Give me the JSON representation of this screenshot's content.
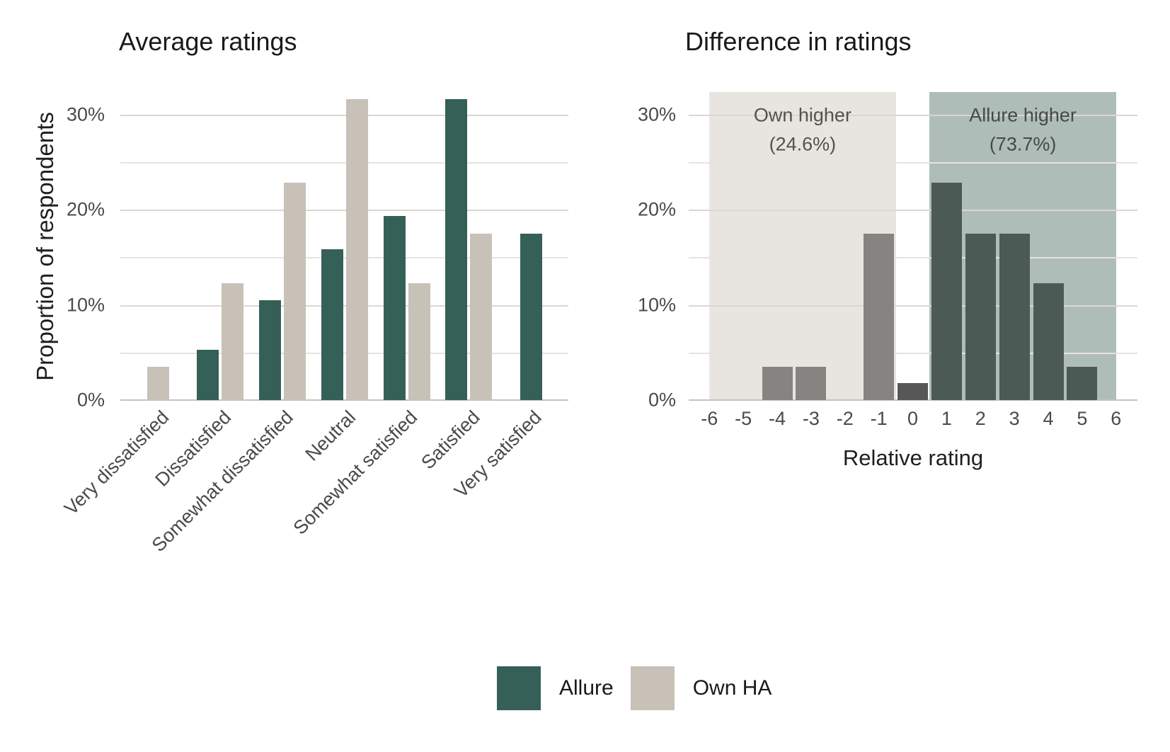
{
  "figure": {
    "background": "#ffffff"
  },
  "colors": {
    "grid_major": "#dbd6d1",
    "grid_minor": "#e7e3df",
    "axis_line": "#c7c2bc",
    "tick_text": "#4c4a47",
    "title_text": "#1a1a1a"
  },
  "legend": {
    "items": [
      {
        "label": "Allure",
        "color": "#356058"
      },
      {
        "label": "Own HA",
        "color": "#c8c1b8"
      }
    ]
  },
  "chart_data": [
    {
      "type": "bar",
      "title": "Average ratings",
      "xlabel": "",
      "ylabel": "Proportion of respondents",
      "categories": [
        "Very dissatisfied",
        "Dissatisfied",
        "Somewhat dissatisfied",
        "Neutral",
        "Somewhat satisfied",
        "Satisfied",
        "Very satisfied"
      ],
      "series": [
        {
          "name": "Allure",
          "color": "#356058",
          "values": [
            null,
            5.3,
            10.5,
            15.8,
            19.3,
            31.6,
            17.5
          ]
        },
        {
          "name": "Own HA",
          "color": "#c8c1b8",
          "values": [
            3.5,
            12.3,
            22.8,
            31.6,
            12.3,
            17.5,
            null
          ]
        }
      ],
      "ylim": [
        0,
        32.3
      ],
      "y_ticks": [
        {
          "value": 0,
          "label": "0%"
        },
        {
          "value": 10,
          "label": "10%"
        },
        {
          "value": 20,
          "label": "20%"
        },
        {
          "value": 30,
          "label": "30%"
        }
      ],
      "grid_minor": [
        5,
        15,
        25
      ],
      "grid": "on",
      "legend_position": "bottom"
    },
    {
      "type": "bar",
      "title": "Difference in ratings",
      "xlabel": "Relative rating",
      "ylabel": "",
      "x": [
        -6,
        -5,
        -4,
        -3,
        -2,
        -1,
        0,
        1,
        2,
        3,
        4,
        5,
        6
      ],
      "x_tick_labels": [
        "-6",
        "-5",
        "-4",
        "-3",
        "-2",
        "-1",
        "0",
        "1",
        "2",
        "3",
        "4",
        "5",
        "6"
      ],
      "values": [
        0,
        0,
        3.5,
        3.5,
        0,
        17.5,
        1.8,
        22.8,
        17.5,
        17.5,
        12.3,
        3.5,
        0
      ],
      "bar_colors": {
        "negative": "#868380",
        "zero": "#575757",
        "positive": "#4b5a55"
      },
      "ylim": [
        0,
        32.3
      ],
      "y_ticks": [
        {
          "value": 0,
          "label": "0%"
        },
        {
          "value": 10,
          "label": "10%"
        },
        {
          "value": 20,
          "label": "20%"
        },
        {
          "value": 30,
          "label": "30%"
        }
      ],
      "grid_minor": [
        5,
        15,
        25
      ],
      "grid": "on",
      "regions": [
        {
          "label_line1": "Own higher",
          "label_line2": "(24.6%)",
          "x_from": -6,
          "x_to": -0.5,
          "fill": "#e8e5e1",
          "text_color": "#55514b"
        },
        {
          "label_line1": "Allure higher",
          "label_line2": "(73.7%)",
          "x_from": 0.5,
          "x_to": 6,
          "fill": "#afbdb8",
          "text_color": "#45494a"
        }
      ]
    }
  ]
}
